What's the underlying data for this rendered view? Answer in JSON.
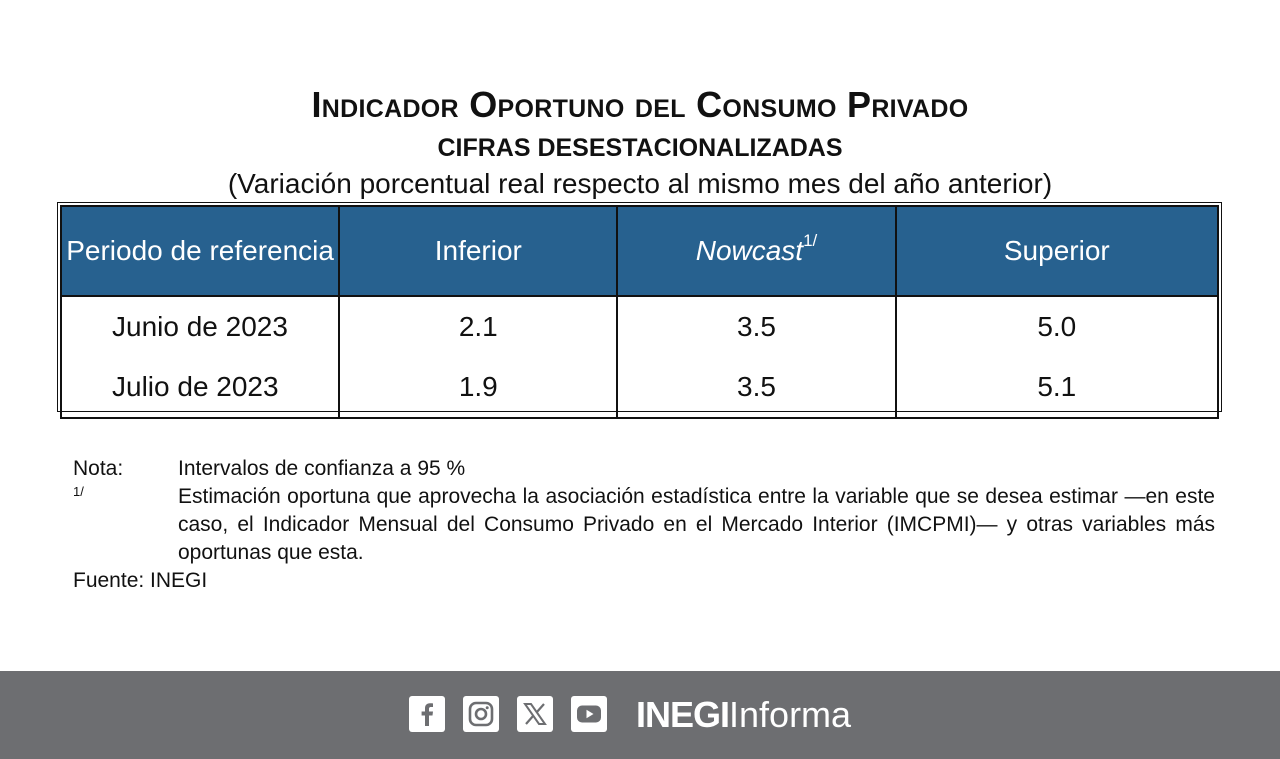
{
  "header": {
    "title": "Indicador Oportuno del Consumo Privado",
    "subtitle": "CIFRAS DESESTACIONALIZADAS",
    "subtitle2": "(Variación porcentual real respecto al mismo mes del año anterior)"
  },
  "table": {
    "headers": {
      "period": "Periodo de referencia",
      "lower": "Inferior",
      "nowcast": "Nowcast",
      "nowcast_sup": "1/",
      "upper": "Superior"
    },
    "rows": [
      {
        "period": "Junio de 2023",
        "lower": "2.1",
        "nowcast": "3.5",
        "upper": "5.0"
      },
      {
        "period": "Julio de 2023",
        "lower": "1.9",
        "nowcast": "3.5",
        "upper": "5.1"
      }
    ]
  },
  "notes": {
    "note_label": "Nota:",
    "note_text": "Intervalos de confianza a 95 %",
    "footnote_label": "1/",
    "footnote_text": "Estimación oportuna que aprovecha la asociación estadística entre la variable que se desea estimar —en este caso, el Indicador Mensual del Consumo Privado en el Mercado Interior (IMCPMI)— y otras variables más oportunas que esta.",
    "source": "Fuente: INEGI"
  },
  "footer": {
    "icons": [
      "facebook-icon",
      "instagram-icon",
      "x-icon",
      "youtube-icon"
    ],
    "brand_bold": "INEGI",
    "brand_regular": "Informa",
    "background": "#6d6e71"
  },
  "colors": {
    "header_fill": "#27618f"
  }
}
